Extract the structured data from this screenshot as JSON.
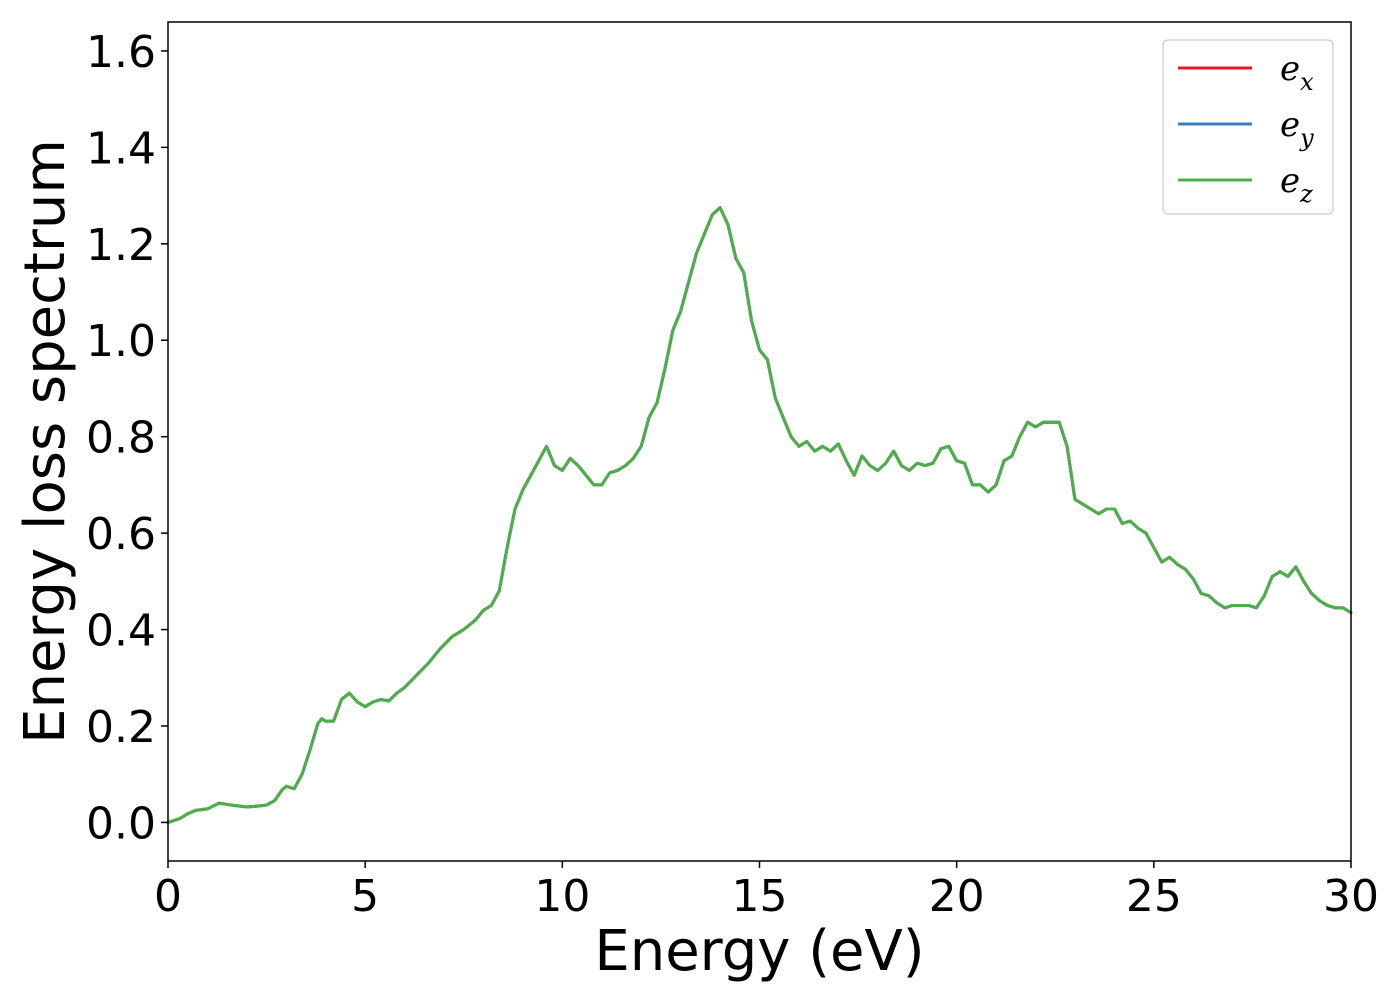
{
  "chart_data": {
    "type": "line",
    "title": "",
    "xlabel": "Energy (eV)",
    "ylabel": "Energy loss spectrum",
    "xlim": [
      0,
      30
    ],
    "ylim": [
      -0.08,
      1.66
    ],
    "xticks": [
      0,
      5,
      10,
      15,
      20,
      25,
      30
    ],
    "yticks": [
      0.0,
      0.2,
      0.4,
      0.6,
      0.8,
      1.0,
      1.2,
      1.4,
      1.6
    ],
    "xtick_labels": [
      "0",
      "5",
      "10",
      "15",
      "20",
      "25",
      "30"
    ],
    "ytick_labels": [
      "0.0",
      "0.2",
      "0.4",
      "0.6",
      "0.8",
      "1.0",
      "1.2",
      "1.4",
      "1.6"
    ],
    "grid": false,
    "legend_position": "top-right",
    "legend": [
      {
        "base": "e",
        "sub": "x",
        "color": "#e41a1c"
      },
      {
        "base": "e",
        "sub": "y",
        "color": "#377eb8"
      },
      {
        "base": "e",
        "sub": "z",
        "color": "#4daf4a"
      }
    ],
    "x": [
      0,
      0.3,
      0.5,
      0.7,
      1.0,
      1.3,
      1.6,
      1.8,
      2.0,
      2.3,
      2.5,
      2.7,
      2.9,
      3.0,
      3.2,
      3.4,
      3.6,
      3.8,
      3.9,
      4.0,
      4.2,
      4.4,
      4.6,
      4.8,
      5.0,
      5.2,
      5.4,
      5.6,
      5.8,
      6.0,
      6.3,
      6.6,
      6.9,
      7.2,
      7.5,
      7.8,
      8.0,
      8.2,
      8.4,
      8.6,
      8.8,
      9.0,
      9.2,
      9.4,
      9.6,
      9.8,
      10.0,
      10.2,
      10.4,
      10.6,
      10.8,
      11.0,
      11.2,
      11.4,
      11.6,
      11.8,
      12.0,
      12.2,
      12.4,
      12.6,
      12.8,
      13.0,
      13.2,
      13.4,
      13.6,
      13.8,
      14.0,
      14.2,
      14.4,
      14.6,
      14.8,
      15.0,
      15.2,
      15.4,
      15.6,
      15.8,
      16.0,
      16.2,
      16.4,
      16.6,
      16.8,
      17.0,
      17.2,
      17.4,
      17.6,
      17.8,
      18.0,
      18.2,
      18.4,
      18.6,
      18.8,
      19.0,
      19.2,
      19.4,
      19.6,
      19.8,
      20.0,
      20.2,
      20.4,
      20.6,
      20.8,
      21.0,
      21.2,
      21.4,
      21.6,
      21.8,
      22.0,
      22.2,
      22.4,
      22.6,
      22.8,
      23.0,
      23.2,
      23.4,
      23.6,
      23.8,
      24.0,
      24.2,
      24.4,
      24.6,
      24.8,
      25.0,
      25.2,
      25.4,
      25.6,
      25.8,
      26.0,
      26.2,
      26.4,
      26.6,
      26.8,
      27.0,
      27.2,
      27.4,
      27.6,
      27.8,
      28.0,
      28.2,
      28.4,
      28.6,
      28.8,
      29.0,
      29.2,
      29.4,
      29.6,
      29.8,
      30.0
    ],
    "series": [
      {
        "name": "e_x",
        "color": "#e41a1c",
        "values": [
          0.0,
          0.008,
          0.018,
          0.025,
          0.028,
          0.04,
          0.036,
          0.034,
          0.032,
          0.034,
          0.036,
          0.045,
          0.068,
          0.075,
          0.07,
          0.1,
          0.15,
          0.205,
          0.215,
          0.21,
          0.21,
          0.255,
          0.268,
          0.25,
          0.24,
          0.25,
          0.255,
          0.252,
          0.268,
          0.28,
          0.305,
          0.33,
          0.36,
          0.385,
          0.4,
          0.42,
          0.44,
          0.45,
          0.48,
          0.57,
          0.65,
          0.69,
          0.72,
          0.75,
          0.78,
          0.74,
          0.73,
          0.755,
          0.74,
          0.72,
          0.7,
          0.7,
          0.725,
          0.73,
          0.74,
          0.755,
          0.78,
          0.84,
          0.87,
          0.94,
          1.02,
          1.06,
          1.12,
          1.18,
          1.22,
          1.26,
          1.275,
          1.24,
          1.17,
          1.14,
          1.04,
          0.98,
          0.96,
          0.88,
          0.84,
          0.8,
          0.78,
          0.79,
          0.77,
          0.78,
          0.77,
          0.785,
          0.75,
          0.72,
          0.76,
          0.74,
          0.73,
          0.745,
          0.77,
          0.74,
          0.73,
          0.745,
          0.74,
          0.745,
          0.775,
          0.78,
          0.75,
          0.745,
          0.7,
          0.7,
          0.685,
          0.7,
          0.75,
          0.76,
          0.8,
          0.83,
          0.82,
          0.83,
          0.83,
          0.83,
          0.78,
          0.67,
          0.66,
          0.65,
          0.64,
          0.65,
          0.65,
          0.62,
          0.625,
          0.61,
          0.6,
          0.57,
          0.54,
          0.55,
          0.535,
          0.525,
          0.505,
          0.475,
          0.47,
          0.455,
          0.445,
          0.45,
          0.45,
          0.45,
          0.445,
          0.47,
          0.51,
          0.52,
          0.51,
          0.53,
          0.5,
          0.475,
          0.46,
          0.45,
          0.445,
          0.445,
          0.435
        ]
      },
      {
        "name": "e_y",
        "color": "#377eb8",
        "values": [
          0.0,
          0.008,
          0.018,
          0.025,
          0.028,
          0.04,
          0.036,
          0.034,
          0.032,
          0.034,
          0.036,
          0.045,
          0.068,
          0.075,
          0.07,
          0.1,
          0.15,
          0.205,
          0.215,
          0.21,
          0.21,
          0.255,
          0.268,
          0.25,
          0.24,
          0.25,
          0.255,
          0.252,
          0.268,
          0.28,
          0.305,
          0.33,
          0.36,
          0.385,
          0.4,
          0.42,
          0.44,
          0.45,
          0.48,
          0.57,
          0.65,
          0.69,
          0.72,
          0.75,
          0.78,
          0.74,
          0.73,
          0.755,
          0.74,
          0.72,
          0.7,
          0.7,
          0.725,
          0.73,
          0.74,
          0.755,
          0.78,
          0.84,
          0.87,
          0.94,
          1.02,
          1.06,
          1.12,
          1.18,
          1.22,
          1.26,
          1.275,
          1.24,
          1.17,
          1.14,
          1.04,
          0.98,
          0.96,
          0.88,
          0.84,
          0.8,
          0.78,
          0.79,
          0.77,
          0.78,
          0.77,
          0.785,
          0.75,
          0.72,
          0.76,
          0.74,
          0.73,
          0.745,
          0.77,
          0.74,
          0.73,
          0.745,
          0.74,
          0.745,
          0.775,
          0.78,
          0.75,
          0.745,
          0.7,
          0.7,
          0.685,
          0.7,
          0.75,
          0.76,
          0.8,
          0.83,
          0.82,
          0.83,
          0.83,
          0.83,
          0.78,
          0.67,
          0.66,
          0.65,
          0.64,
          0.65,
          0.65,
          0.62,
          0.625,
          0.61,
          0.6,
          0.57,
          0.54,
          0.55,
          0.535,
          0.525,
          0.505,
          0.475,
          0.47,
          0.455,
          0.445,
          0.45,
          0.45,
          0.45,
          0.445,
          0.47,
          0.51,
          0.52,
          0.51,
          0.53,
          0.5,
          0.475,
          0.46,
          0.45,
          0.445,
          0.445,
          0.435
        ]
      },
      {
        "name": "e_z",
        "color": "#4daf4a",
        "values": [
          0.0,
          0.008,
          0.018,
          0.025,
          0.028,
          0.04,
          0.036,
          0.034,
          0.032,
          0.034,
          0.036,
          0.045,
          0.068,
          0.075,
          0.07,
          0.1,
          0.15,
          0.205,
          0.215,
          0.21,
          0.21,
          0.255,
          0.268,
          0.25,
          0.24,
          0.25,
          0.255,
          0.252,
          0.268,
          0.28,
          0.305,
          0.33,
          0.36,
          0.385,
          0.4,
          0.42,
          0.44,
          0.45,
          0.48,
          0.57,
          0.65,
          0.69,
          0.72,
          0.75,
          0.78,
          0.74,
          0.73,
          0.755,
          0.74,
          0.72,
          0.7,
          0.7,
          0.725,
          0.73,
          0.74,
          0.755,
          0.78,
          0.84,
          0.87,
          0.94,
          1.02,
          1.06,
          1.12,
          1.18,
          1.22,
          1.26,
          1.275,
          1.24,
          1.17,
          1.14,
          1.04,
          0.98,
          0.96,
          0.88,
          0.84,
          0.8,
          0.78,
          0.79,
          0.77,
          0.78,
          0.77,
          0.785,
          0.75,
          0.72,
          0.76,
          0.74,
          0.73,
          0.745,
          0.77,
          0.74,
          0.73,
          0.745,
          0.74,
          0.745,
          0.775,
          0.78,
          0.75,
          0.745,
          0.7,
          0.7,
          0.685,
          0.7,
          0.75,
          0.76,
          0.8,
          0.83,
          0.82,
          0.83,
          0.83,
          0.83,
          0.78,
          0.67,
          0.66,
          0.65,
          0.64,
          0.65,
          0.65,
          0.62,
          0.625,
          0.61,
          0.6,
          0.57,
          0.54,
          0.55,
          0.535,
          0.525,
          0.505,
          0.475,
          0.47,
          0.455,
          0.445,
          0.45,
          0.45,
          0.45,
          0.445,
          0.47,
          0.51,
          0.52,
          0.51,
          0.53,
          0.5,
          0.475,
          0.46,
          0.45,
          0.445,
          0.445,
          0.435
        ]
      }
    ]
  }
}
